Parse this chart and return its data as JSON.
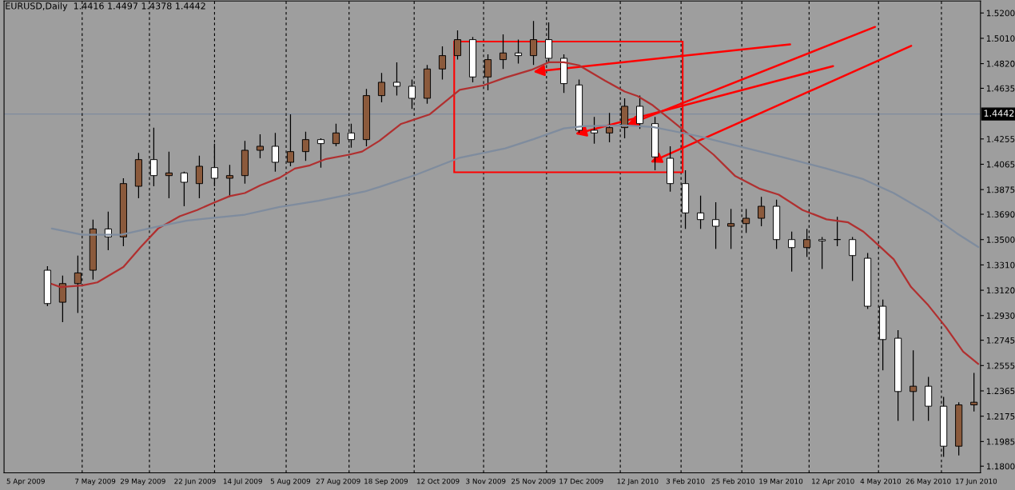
{
  "chart_data": {
    "type": "candlestick",
    "title": "EURUSD,Daily  1.4416 1.4497 1.4378 1.4442",
    "x": [
      "2009-04-15",
      "2009-04-22",
      "2009-04-29",
      "2009-05-06",
      "2009-05-13",
      "2009-05-20",
      "2009-05-27",
      "2009-06-03",
      "2009-06-10",
      "2009-06-17",
      "2009-06-24",
      "2009-07-01",
      "2009-07-08",
      "2009-07-15",
      "2009-07-22",
      "2009-07-29",
      "2009-08-05",
      "2009-08-12",
      "2009-08-19",
      "2009-08-26",
      "2009-09-02",
      "2009-09-09",
      "2009-09-16",
      "2009-09-23",
      "2009-09-30",
      "2009-10-07",
      "2009-10-14",
      "2009-10-21",
      "2009-10-28",
      "2009-11-04",
      "2009-11-11",
      "2009-11-18",
      "2009-11-25",
      "2009-12-02",
      "2009-12-09",
      "2009-12-16",
      "2009-12-23",
      "2009-12-30",
      "2010-01-06",
      "2010-01-13",
      "2010-01-20",
      "2010-01-27",
      "2010-02-03",
      "2010-02-10",
      "2010-02-17",
      "2010-02-24",
      "2010-03-03",
      "2010-03-10",
      "2010-03-17",
      "2010-03-24",
      "2010-03-31",
      "2010-04-07",
      "2010-04-14",
      "2010-04-21",
      "2010-04-28",
      "2010-05-05",
      "2010-05-12",
      "2010-05-19",
      "2010-05-26",
      "2010-06-02",
      "2010-06-09",
      "2010-06-16"
    ],
    "ohlc": [
      [
        1.327,
        1.33,
        1.3,
        1.302
      ],
      [
        1.303,
        1.323,
        1.288,
        1.317
      ],
      [
        1.317,
        1.338,
        1.295,
        1.325
      ],
      [
        1.327,
        1.365,
        1.32,
        1.358
      ],
      [
        1.358,
        1.371,
        1.342,
        1.352
      ],
      [
        1.352,
        1.396,
        1.345,
        1.392
      ],
      [
        1.39,
        1.415,
        1.381,
        1.41
      ],
      [
        1.41,
        1.434,
        1.39,
        1.398
      ],
      [
        1.398,
        1.416,
        1.381,
        1.4
      ],
      [
        1.4,
        1.401,
        1.375,
        1.393
      ],
      [
        1.392,
        1.413,
        1.381,
        1.405
      ],
      [
        1.404,
        1.422,
        1.39,
        1.396
      ],
      [
        1.396,
        1.406,
        1.382,
        1.398
      ],
      [
        1.398,
        1.424,
        1.392,
        1.417
      ],
      [
        1.417,
        1.429,
        1.411,
        1.42
      ],
      [
        1.42,
        1.43,
        1.401,
        1.408
      ],
      [
        1.408,
        1.444,
        1.405,
        1.416
      ],
      [
        1.416,
        1.431,
        1.409,
        1.425
      ],
      [
        1.425,
        1.426,
        1.404,
        1.422
      ],
      [
        1.422,
        1.437,
        1.42,
        1.43
      ],
      [
        1.43,
        1.437,
        1.419,
        1.425
      ],
      [
        1.425,
        1.463,
        1.42,
        1.458
      ],
      [
        1.458,
        1.475,
        1.453,
        1.468
      ],
      [
        1.468,
        1.483,
        1.458,
        1.465
      ],
      [
        1.465,
        1.47,
        1.448,
        1.456
      ],
      [
        1.456,
        1.481,
        1.452,
        1.478
      ],
      [
        1.478,
        1.495,
        1.47,
        1.488
      ],
      [
        1.488,
        1.507,
        1.485,
        1.5
      ],
      [
        1.5,
        1.502,
        1.468,
        1.472
      ],
      [
        1.472,
        1.489,
        1.462,
        1.485
      ],
      [
        1.485,
        1.504,
        1.478,
        1.49
      ],
      [
        1.49,
        1.5,
        1.482,
        1.488
      ],
      [
        1.488,
        1.514,
        1.481,
        1.5
      ],
      [
        1.5,
        1.513,
        1.483,
        1.486
      ],
      [
        1.486,
        1.489,
        1.46,
        1.467
      ],
      [
        1.466,
        1.47,
        1.43,
        1.432
      ],
      [
        1.432,
        1.442,
        1.422,
        1.43
      ],
      [
        1.43,
        1.445,
        1.423,
        1.434
      ],
      [
        1.434,
        1.456,
        1.426,
        1.45
      ],
      [
        1.45,
        1.458,
        1.433,
        1.437
      ],
      [
        1.437,
        1.442,
        1.402,
        1.412
      ],
      [
        1.411,
        1.42,
        1.386,
        1.392
      ],
      [
        1.392,
        1.402,
        1.358,
        1.37
      ],
      [
        1.37,
        1.383,
        1.358,
        1.365
      ],
      [
        1.365,
        1.378,
        1.343,
        1.36
      ],
      [
        1.36,
        1.373,
        1.343,
        1.362
      ],
      [
        1.362,
        1.373,
        1.355,
        1.366
      ],
      [
        1.366,
        1.382,
        1.36,
        1.375
      ],
      [
        1.375,
        1.38,
        1.343,
        1.35
      ],
      [
        1.35,
        1.356,
        1.326,
        1.344
      ],
      [
        1.344,
        1.358,
        1.337,
        1.35
      ],
      [
        1.35,
        1.352,
        1.328,
        1.349
      ],
      [
        1.35,
        1.367,
        1.345,
        1.35
      ],
      [
        1.35,
        1.352,
        1.319,
        1.338
      ],
      [
        1.336,
        1.34,
        1.298,
        1.3
      ],
      [
        1.3,
        1.305,
        1.252,
        1.275
      ],
      [
        1.276,
        1.282,
        1.214,
        1.236
      ],
      [
        1.236,
        1.267,
        1.214,
        1.24
      ],
      [
        1.24,
        1.247,
        1.214,
        1.225
      ],
      [
        1.225,
        1.232,
        1.187,
        1.195
      ],
      [
        1.195,
        1.228,
        1.188,
        1.226
      ],
      [
        1.226,
        1.25,
        1.221,
        1.228
      ]
    ],
    "colors": [
      "#ffffff",
      "#8b5a3c",
      "#8b5a3c",
      "#8b5a3c",
      "#ffffff",
      "#8b5a3c",
      "#8b5a3c",
      "#ffffff",
      "#8b5a3c",
      "#ffffff",
      "#8b5a3c",
      "#ffffff",
      "#8b5a3c",
      "#8b5a3c",
      "#8b5a3c",
      "#ffffff",
      "#8b5a3c",
      "#8b5a3c",
      "#ffffff",
      "#8b5a3c",
      "#ffffff",
      "#8b5a3c",
      "#8b5a3c",
      "#ffffff",
      "#ffffff",
      "#8b5a3c",
      "#8b5a3c",
      "#8b5a3c",
      "#ffffff",
      "#8b5a3c",
      "#8b5a3c",
      "#ffffff",
      "#8b5a3c",
      "#ffffff",
      "#ffffff",
      "#ffffff",
      "#ffffff",
      "#8b5a3c",
      "#8b5a3c",
      "#ffffff",
      "#ffffff",
      "#ffffff",
      "#ffffff",
      "#ffffff",
      "#ffffff",
      "#8b5a3c",
      "#8b5a3c",
      "#8b5a3c",
      "#ffffff",
      "#ffffff",
      "#8b5a3c",
      "#ffffff",
      "#ffffff",
      "#ffffff",
      "#ffffff",
      "#ffffff",
      "#ffffff",
      "#8b5a3c",
      "#ffffff",
      "#ffffff",
      "#8b5a3c",
      "#8b5a3c"
    ],
    "series": [
      {
        "type": "line",
        "color": "#b03030",
        "x": [
          "2009-04-17",
          "2009-04-21",
          "2009-05-01",
          "2009-05-08",
          "2009-05-20",
          "2009-05-28",
          "2009-06-05",
          "2009-06-15",
          "2009-06-23",
          "2009-07-01",
          "2009-07-08",
          "2009-07-15",
          "2009-07-22",
          "2009-07-31",
          "2009-08-07",
          "2009-08-14",
          "2009-08-21",
          "2009-09-01",
          "2009-09-07",
          "2009-09-15",
          "2009-09-25",
          "2009-10-08",
          "2009-10-22",
          "2009-11-02",
          "2009-11-12",
          "2009-11-24",
          "2009-12-02",
          "2009-12-09",
          "2009-12-16",
          "2009-12-28",
          "2010-01-06",
          "2010-01-12",
          "2010-01-19",
          "2010-01-26",
          "2010-02-09",
          "2010-02-16",
          "2010-02-26",
          "2010-03-09",
          "2010-03-18",
          "2010-03-29",
          "2010-04-09",
          "2010-04-19",
          "2010-04-26",
          "2010-04-30",
          "2010-05-10",
          "2010-05-18",
          "2010-05-26",
          "2010-06-03",
          "2010-06-11",
          "2010-06-18"
        ],
        "values": [
          1.3167,
          1.3144,
          1.3156,
          1.3179,
          1.3294,
          1.3444,
          1.3583,
          1.3675,
          1.3722,
          1.3779,
          1.3826,
          1.3849,
          1.3906,
          1.3964,
          1.4033,
          1.4057,
          1.4103,
          1.4137,
          1.416,
          1.4241,
          1.4368,
          1.4438,
          1.4623,
          1.4657,
          1.4715,
          1.4773,
          1.483,
          1.483,
          1.4807,
          1.4692,
          1.4611,
          1.4576,
          1.4507,
          1.4415,
          1.423,
          1.4137,
          1.3976,
          1.3883,
          1.3837,
          1.3722,
          1.3652,
          1.3629,
          1.356,
          1.3502,
          1.3352,
          1.3144,
          1.3006,
          1.2844,
          1.2659,
          1.2567
        ]
      },
      {
        "type": "line",
        "color": "#7f8c9e",
        "x": [
          "2009-04-17",
          "2009-05-01",
          "2009-05-19",
          "2009-06-04",
          "2009-06-18",
          "2009-07-01",
          "2009-07-15",
          "2009-07-31",
          "2009-08-18",
          "2009-09-08",
          "2009-09-15",
          "2009-10-02",
          "2009-10-22",
          "2009-11-12",
          "2009-11-25",
          "2009-12-09",
          "2009-12-18",
          "2010-01-06",
          "2010-01-19",
          "2010-02-02",
          "2010-02-09",
          "2010-02-26",
          "2010-03-18",
          "2010-04-09",
          "2010-04-26",
          "2010-05-10",
          "2010-05-26",
          "2010-06-08",
          "2010-06-18"
        ],
        "values": [
          1.3583,
          1.3537,
          1.3537,
          1.3595,
          1.3641,
          1.3664,
          1.3687,
          1.3745,
          1.3791,
          1.386,
          1.3895,
          1.3987,
          1.4114,
          1.4184,
          1.4253,
          1.4334,
          1.435,
          1.4357,
          1.4345,
          1.4299,
          1.4276,
          1.4207,
          1.4126,
          1.4033,
          1.3953,
          1.3849,
          1.3698,
          1.3548,
          1.3444
        ]
      }
    ],
    "xlim": [
      "2009-03-26",
      "2010-06-19"
    ],
    "xticks": [
      {
        "value": "2009-04-05",
        "label": "5 Apr 2009"
      },
      {
        "value": "2009-05-07",
        "label": "7 May 2009"
      },
      {
        "value": "2009-05-29",
        "label": "29 May 2009"
      },
      {
        "value": "2009-06-22",
        "label": "22 Jun 2009"
      },
      {
        "value": "2009-07-14",
        "label": "14 Jul 2009"
      },
      {
        "value": "2009-08-05",
        "label": "5 Aug 2009"
      },
      {
        "value": "2009-08-27",
        "label": "27 Aug 2009"
      },
      {
        "value": "2009-09-18",
        "label": "18 Sep 2009"
      },
      {
        "value": "2009-10-12",
        "label": "12 Oct 2009"
      },
      {
        "value": "2009-11-03",
        "label": "3 Nov 2009"
      },
      {
        "value": "2009-11-25",
        "label": "25 Nov 2009"
      },
      {
        "value": "2009-12-17",
        "label": "17 Dec 2009"
      },
      {
        "value": "2010-01-12",
        "label": "12 Jan 2010"
      },
      {
        "value": "2010-02-03",
        "label": "3 Feb 2010"
      },
      {
        "value": "2010-02-25",
        "label": "25 Feb 2010"
      },
      {
        "value": "2010-03-19",
        "label": "19 Mar 2010"
      },
      {
        "value": "2010-04-12",
        "label": "12 Apr 2010"
      },
      {
        "value": "2010-05-04",
        "label": "4 May 2010"
      },
      {
        "value": "2010-05-26",
        "label": "26 May 2010"
      },
      {
        "value": "2010-06-17",
        "label": "17 Jun 2010"
      }
    ],
    "ylim": [
      1.175,
      1.529
    ],
    "yticks": [
      {
        "value": 1.52,
        "label": "1.5200"
      },
      {
        "value": 1.501,
        "label": "1.5010"
      },
      {
        "value": 1.482,
        "label": "1.4820"
      },
      {
        "value": 1.4635,
        "label": "1.4635"
      },
      {
        "value": 1.4255,
        "label": "1.4255"
      },
      {
        "value": 1.4065,
        "label": "1.4065"
      },
      {
        "value": 1.3875,
        "label": "1.3875"
      },
      {
        "value": 1.369,
        "label": "1.3690"
      },
      {
        "value": 1.35,
        "label": "1.3500"
      },
      {
        "value": 1.331,
        "label": "1.3310"
      },
      {
        "value": 1.312,
        "label": "1.3120"
      },
      {
        "value": 1.293,
        "label": "1.2930"
      },
      {
        "value": 1.2745,
        "label": "1.2745"
      },
      {
        "value": 1.2555,
        "label": "1.2555"
      },
      {
        "value": 1.2365,
        "label": "1.2365"
      },
      {
        "value": 1.2175,
        "label": "1.2175"
      },
      {
        "value": 1.1985,
        "label": "1.1985"
      },
      {
        "value": 1.18,
        "label": "1.1800"
      }
    ],
    "ref_lines": [
      {
        "axis": "y",
        "value": 1.4442,
        "label": "1.4442",
        "color": "#7f8c9e",
        "line_style": "solid"
      },
      {
        "axis": "x",
        "value": "2009-05-01",
        "color": "#000000",
        "line_style": "dashed"
      },
      {
        "axis": "x",
        "value": "2009-06-01",
        "color": "#000000",
        "line_style": "dashed"
      },
      {
        "axis": "x",
        "value": "2009-07-01",
        "color": "#000000",
        "line_style": "dashed"
      },
      {
        "axis": "x",
        "value": "2009-08-03",
        "color": "#000000",
        "line_style": "dashed"
      },
      {
        "axis": "x",
        "value": "2009-09-01",
        "color": "#000000",
        "line_style": "dashed"
      },
      {
        "axis": "x",
        "value": "2009-10-01",
        "color": "#000000",
        "line_style": "dashed"
      },
      {
        "axis": "x",
        "value": "2009-11-02",
        "color": "#000000",
        "line_style": "dashed"
      },
      {
        "axis": "x",
        "value": "2009-12-01",
        "color": "#000000",
        "line_style": "dashed"
      },
      {
        "axis": "x",
        "value": "2010-01-04",
        "color": "#000000",
        "line_style": "dashed"
      },
      {
        "axis": "x",
        "value": "2010-02-01",
        "color": "#000000",
        "line_style": "dashed"
      },
      {
        "axis": "x",
        "value": "2010-03-01",
        "color": "#000000",
        "line_style": "dashed"
      },
      {
        "axis": "x",
        "value": "2010-04-01",
        "color": "#000000",
        "line_style": "dashed"
      },
      {
        "axis": "x",
        "value": "2010-05-03",
        "color": "#000000",
        "line_style": "dashed"
      },
      {
        "axis": "x",
        "value": "2010-06-01",
        "color": "#000000",
        "line_style": "dashed"
      }
    ],
    "grid": false,
    "legend": false
  }
}
